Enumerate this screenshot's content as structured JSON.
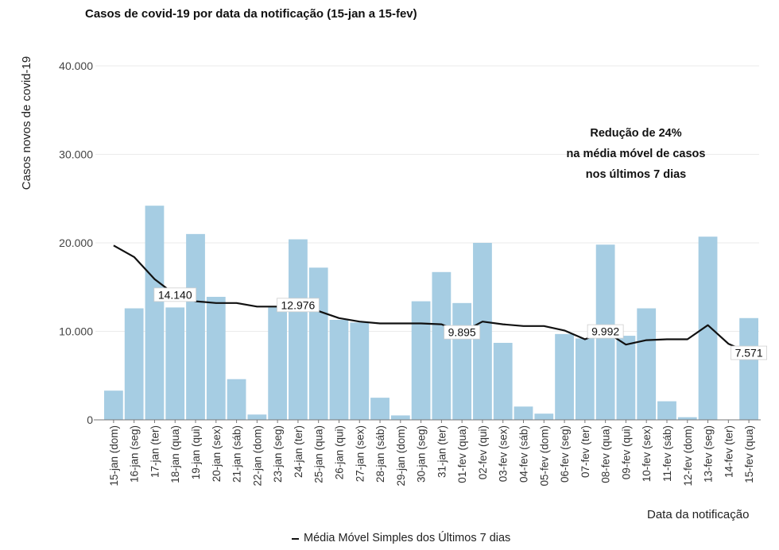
{
  "chart_data": {
    "type": "bar",
    "title": "Casos de covid-19 por data da notificação (15-jan a 15-fev)",
    "xlabel": "Data da notificação",
    "ylabel": "Casos novos de covid-19",
    "ylim": [
      0,
      44000
    ],
    "yticks": [
      0,
      10000,
      20000,
      30000,
      40000
    ],
    "ytick_labels": [
      "0",
      "10.000",
      "20.000",
      "30.000",
      "40.000"
    ],
    "grid": true,
    "legend": "bottom",
    "categories": [
      "15-jan (dom)",
      "16-jan (seg)",
      "17-jan (ter)",
      "18-jan (qua)",
      "19-jan (qui)",
      "20-jan (sex)",
      "21-jan (sáb)",
      "22-jan (dom)",
      "23-jan (seg)",
      "24-jan (ter)",
      "25-jan (qua)",
      "26-jan (qui)",
      "27-jan (sex)",
      "28-jan (sáb)",
      "29-jan (dom)",
      "30-jan (seg)",
      "31-jan (ter)",
      "01-fev (qua)",
      "02-fev (qui)",
      "03-fev (sex)",
      "04-fev (sáb)",
      "05-fev (dom)",
      "06-fev (seg)",
      "07-fev (ter)",
      "08-fev (qua)",
      "09-fev (qui)",
      "10-fev (sex)",
      "11-fev (sáb)",
      "12-fev (dom)",
      "13-fev (seg)",
      "14-fev (ter)",
      "15-fev (qua)"
    ],
    "series": [
      {
        "type": "bar",
        "color": "#a6cde3",
        "values": [
          3300,
          12600,
          24200,
          12700,
          21000,
          13900,
          4600,
          600,
          12700,
          20400,
          17200,
          11300,
          11000,
          2500,
          500,
          13400,
          16700,
          13200,
          20000,
          8700,
          1500,
          700,
          9700,
          9200,
          19800,
          9500,
          12600,
          2100,
          300,
          20700,
          0,
          11500
        ]
      },
      {
        "type": "line",
        "name": "Média Móvel Simples dos Últimos 7 dias",
        "color": "#111111",
        "values": [
          19700,
          18400,
          15900,
          14140,
          13400,
          13200,
          13200,
          12800,
          12800,
          12976,
          12300,
          11500,
          11100,
          10900,
          10900,
          10900,
          10800,
          9895,
          11100,
          10800,
          10600,
          10600,
          10100,
          9100,
          9992,
          8500,
          9000,
          9100,
          9100,
          10700,
          8600,
          7571
        ]
      }
    ],
    "data_labels": [
      {
        "index": 3,
        "text": "14.140"
      },
      {
        "index": 9,
        "text": "12.976"
      },
      {
        "index": 17,
        "text": "9.895"
      },
      {
        "index": 24,
        "text": "9.992"
      },
      {
        "index": 31,
        "text": "7.571"
      }
    ],
    "annotation": [
      "Redução de 24%",
      "na média móvel de casos",
      "nos últimos 7 dias"
    ]
  }
}
